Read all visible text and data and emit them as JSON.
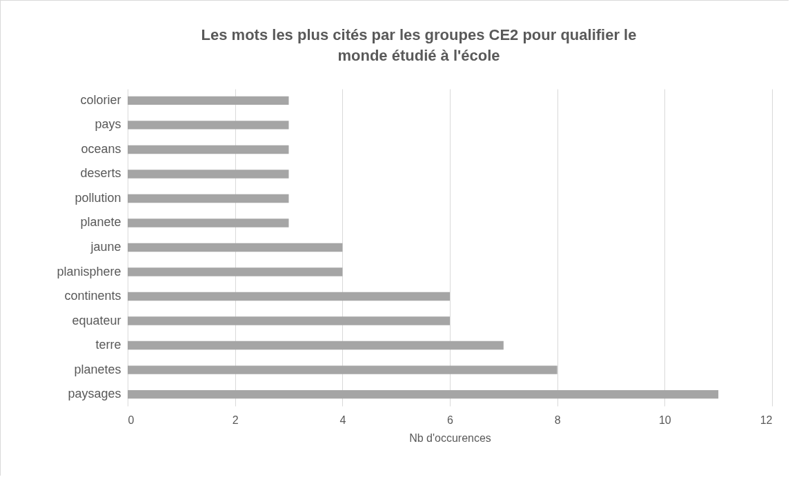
{
  "chart_data": {
    "type": "bar",
    "orientation": "horizontal",
    "title": "Les mots les plus cités par les groupes CE2 pour qualifier le monde étudié à l'école",
    "xlabel": "Nb d'occurences",
    "categories": [
      "colorier",
      "pays",
      "oceans",
      "deserts",
      "pollution",
      "planete",
      "jaune",
      "planisphere",
      "continents",
      "equateur",
      "terre",
      "planetes",
      "paysages"
    ],
    "values": [
      3,
      3,
      3,
      3,
      3,
      3,
      4,
      4,
      6,
      6,
      7,
      8,
      11
    ],
    "color": "#a5a5a5",
    "xlim": [
      0,
      12
    ],
    "xticks": [
      0,
      2,
      4,
      6,
      8,
      10,
      12
    ],
    "grid": "x"
  }
}
